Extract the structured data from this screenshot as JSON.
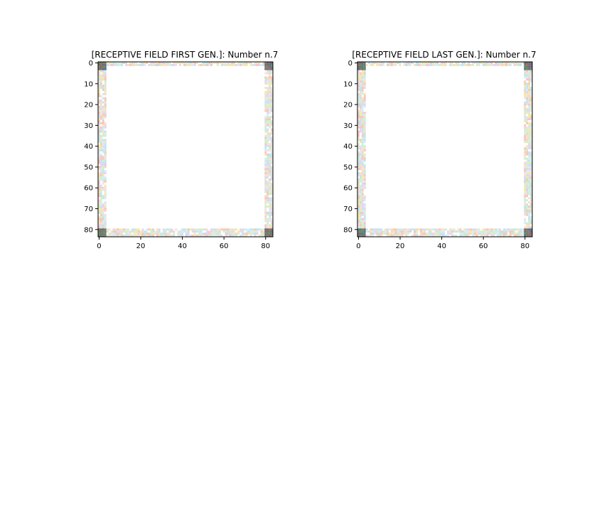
{
  "chart_data": [
    {
      "type": "heatmap",
      "title": "[RECEPTIVE FIELD FIRST GEN.]: Number n.7",
      "grid_size": 84,
      "xlim": [
        0,
        84
      ],
      "ylim": [
        84,
        0
      ],
      "xticks": [
        0,
        20,
        40,
        60,
        80
      ],
      "yticks": [
        0,
        10,
        20,
        30,
        40,
        50,
        60,
        70,
        80
      ],
      "content": "border-only receptive field: nonzero values in a ~4-pixel frame, darker blocks at the four corners, white interior",
      "border_width": 4,
      "corner_size": 4,
      "seed": 7
    },
    {
      "type": "heatmap",
      "title": "[RECEPTIVE FIELD LAST GEN.]: Number n.7",
      "grid_size": 84,
      "xlim": [
        0,
        84
      ],
      "ylim": [
        84,
        0
      ],
      "xticks": [
        0,
        20,
        40,
        60,
        80
      ],
      "yticks": [
        0,
        10,
        20,
        30,
        40,
        50,
        60,
        70,
        80
      ],
      "content": "border-only receptive field: nonzero values in a ~4-pixel frame, darker blocks at the four corners, white interior",
      "border_width": 4,
      "corner_size": 4,
      "seed": 7
    }
  ],
  "colors": {
    "edge": [
      "#f4e7a8",
      "#bfe6f2",
      "#f7c7b6",
      "#cdeed8",
      "#e9d3ef",
      "#ffffff",
      "#d7ecf9",
      "#fbe0c4"
    ],
    "corner": [
      "#5b7f72",
      "#8a5f73",
      "#6f7c58",
      "#4e6f8a",
      "#7a6a5a",
      "#9a6a6a",
      "#5c8a6a"
    ]
  }
}
